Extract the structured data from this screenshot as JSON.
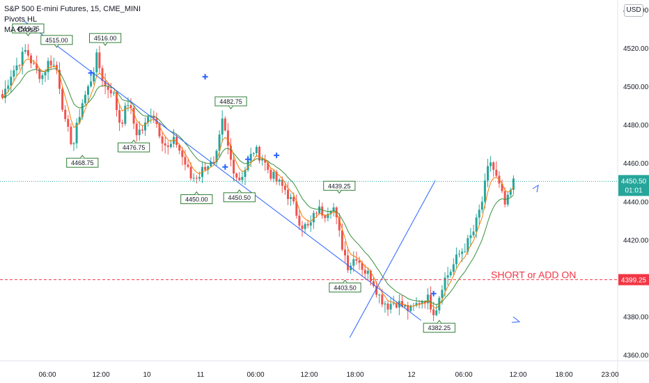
{
  "legend": {
    "symbol": "S&P 500 E-mini Futures, 15, CME_MINI",
    "indicator_1": "Pivots HL",
    "indicator_2": "MA Cross"
  },
  "currency_label": "USD",
  "colors": {
    "up": "#26a69a",
    "down": "#ef5350",
    "ma_fast": "#f57c00",
    "ma_slow": "#388e3c",
    "trendline": "#2962ff",
    "cross_marker": "#2962ff",
    "alert_line": "#f23645",
    "last_price_bg": "#26a69a",
    "pivot_label_bg": "#ffffff",
    "pivot_label_border": "#2e7d32"
  },
  "chart_data": {
    "type": "candlestick",
    "ylim": [
      4357,
      4545
    ],
    "y_ticks": [
      4360,
      4380,
      4400,
      4420,
      4440,
      4460,
      4480,
      4500,
      4520,
      4540
    ],
    "y_tick_labels": [
      "4360.00",
      "4380.00",
      "4400.00",
      "4420.00",
      "4440.00",
      "4460.00",
      "4480.00",
      "4500.00",
      "4520.00",
      "4540.00"
    ],
    "x_ticks": [
      "06:00",
      "12:00",
      "10",
      "11",
      "06:00",
      "12:00",
      "18:00",
      "12",
      "06:00",
      "12:00",
      "18:00",
      "23:00"
    ],
    "pivot_labels": [
      "4519.75",
      "4515.00",
      "4516.00",
      "4468.75",
      "4476.75",
      "4450.00",
      "4482.75",
      "4450.50",
      "4439.25",
      "4403.50",
      "4382.25"
    ],
    "alert_level": 4399.25,
    "alert_text": "SHORT or ADD ON",
    "last_price": "4450.50",
    "last_countdown": "01:01",
    "alert_price_label": "4399.25",
    "path_points": [
      4494,
      4506,
      4512,
      4519,
      4510,
      4505,
      4514,
      4508,
      4480,
      4469,
      4490,
      4500,
      4515,
      4500,
      4498,
      4480,
      4492,
      4476,
      4478,
      4488,
      4476,
      4467,
      4472,
      4462,
      4452,
      4454,
      4460,
      4458,
      4482,
      4462,
      4451,
      4458,
      4467,
      4463,
      4455,
      4450,
      4446,
      4438,
      4428,
      4426,
      4436,
      4434,
      4439,
      4420,
      4406,
      4412,
      4404,
      4400,
      4390,
      4386,
      4388,
      4385,
      4383,
      4388,
      4390,
      4382,
      4398,
      4404,
      4412,
      4417,
      4425,
      4440,
      4462,
      4450,
      4437,
      4450
    ],
    "candle_count": 180,
    "trendlines": [
      {
        "name": "descending",
        "from": {
          "bar": 8,
          "price": 4534
        },
        "to": {
          "bar": 147,
          "price": 4378
        }
      },
      {
        "name": "ascending",
        "from": {
          "bar": 122,
          "price": 4369
        },
        "to": {
          "bar": 152,
          "price": 4451
        }
      }
    ]
  }
}
